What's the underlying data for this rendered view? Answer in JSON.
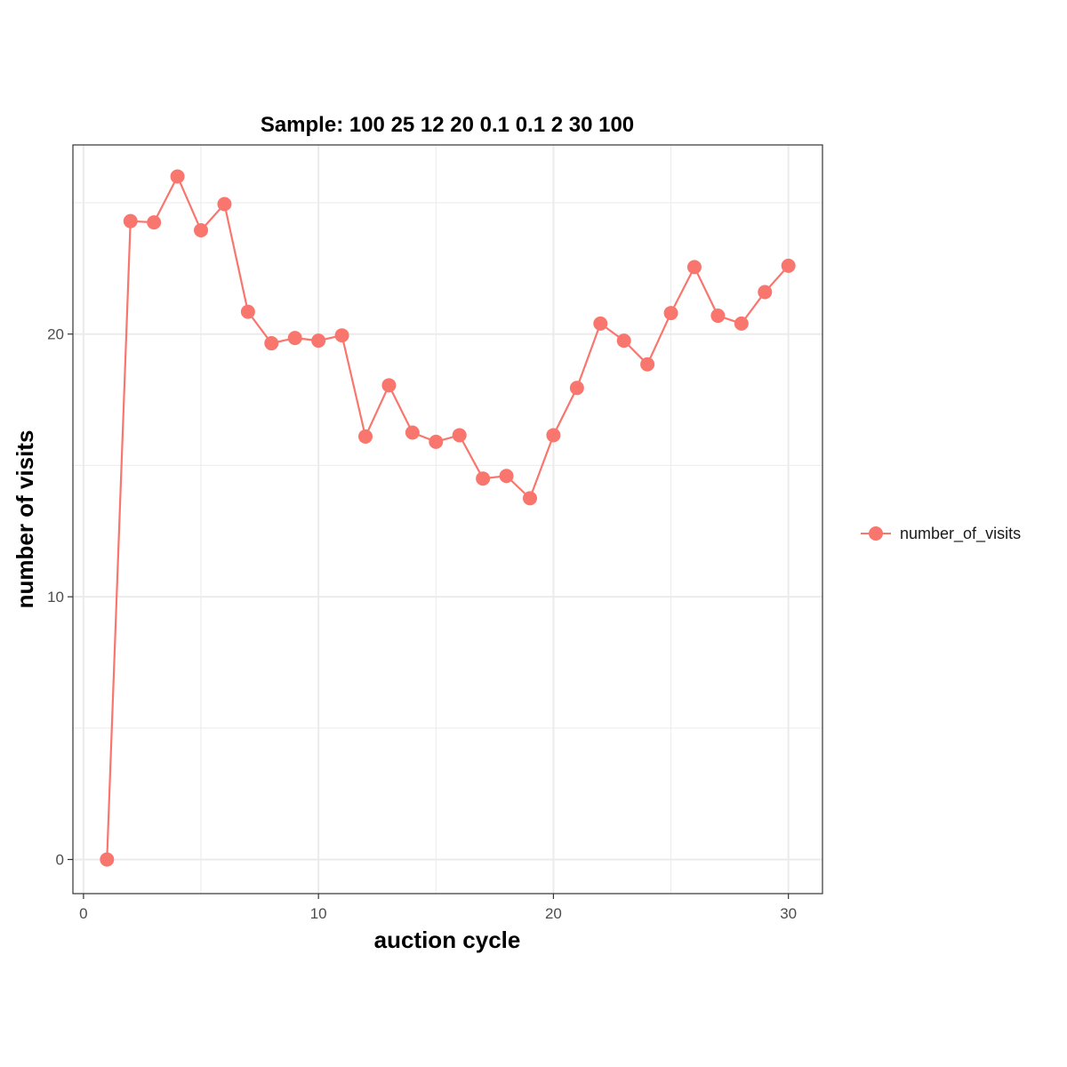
{
  "chart_data": {
    "type": "line",
    "title": "Sample: 100 25 12 20 0.1 0.1 2 30 100",
    "xlabel": "auction cycle",
    "ylabel": "number of visits",
    "xlim": [
      -0.45,
      31.45
    ],
    "ylim": [
      -1.3,
      27.2
    ],
    "xticks": [
      0,
      10,
      20,
      30
    ],
    "yticks": [
      0,
      10,
      20
    ],
    "x_minor": [
      5,
      15,
      25
    ],
    "y_minor": [
      5,
      15,
      25
    ],
    "grid": true,
    "legend_position": "right",
    "series": [
      {
        "name": "number_of_visits",
        "color": "#F8766D",
        "x": [
          1,
          2,
          3,
          4,
          5,
          6,
          7,
          8,
          9,
          10,
          11,
          12,
          13,
          14,
          15,
          16,
          17,
          18,
          19,
          20,
          21,
          22,
          23,
          24,
          25,
          26,
          27,
          28,
          29,
          30
        ],
        "y": [
          0,
          24.3,
          24.25,
          26.0,
          23.95,
          24.95,
          20.85,
          19.65,
          19.85,
          19.75,
          19.95,
          16.1,
          18.05,
          16.25,
          15.9,
          16.15,
          14.5,
          14.6,
          13.75,
          16.15,
          17.95,
          20.4,
          19.75,
          18.85,
          20.8,
          22.55,
          20.7,
          20.4,
          21.6,
          22.6
        ]
      }
    ]
  }
}
